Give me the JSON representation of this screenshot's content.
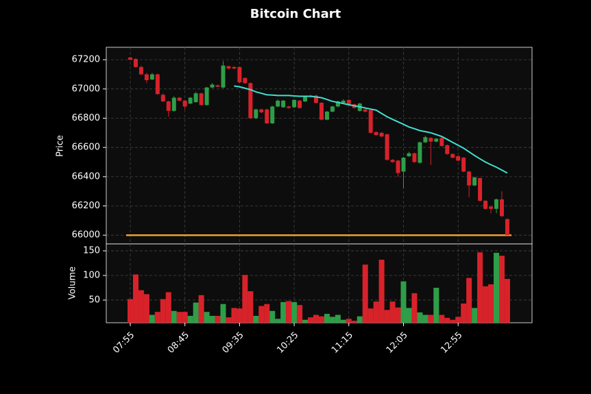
{
  "chart_data": {
    "type": "candlestick",
    "title": "Bitcoin Chart",
    "ylabel": "Price",
    "volume_ylabel": "Volume",
    "categories": [
      "07:55",
      null,
      null,
      null,
      null,
      null,
      null,
      null,
      null,
      null,
      "08:45",
      null,
      null,
      null,
      null,
      null,
      null,
      null,
      null,
      null,
      "09:35",
      null,
      null,
      null,
      null,
      null,
      null,
      null,
      null,
      null,
      "10:25",
      null,
      null,
      null,
      null,
      null,
      null,
      null,
      null,
      null,
      "11:15",
      null,
      null,
      null,
      null,
      null,
      null,
      null,
      null,
      null,
      "12:05",
      null,
      null,
      null,
      null,
      null,
      null,
      null,
      null,
      null,
      "12:55",
      null,
      null,
      null,
      null,
      null,
      null,
      null,
      null,
      null
    ],
    "open": [
      67215,
      67205,
      67150,
      67100,
      67065,
      67100,
      66960,
      66915,
      66850,
      66940,
      66920,
      66900,
      66910,
      66970,
      66890,
      67010,
      67025,
      67010,
      67155,
      67150,
      67150,
      67075,
      67040,
      66800,
      66860,
      66860,
      66765,
      66880,
      66875,
      66880,
      66875,
      66920,
      66915,
      66955,
      66955,
      66905,
      66790,
      66845,
      66880,
      66905,
      66925,
      66895,
      66850,
      66860,
      66855,
      66705,
      66700,
      66690,
      66515,
      66510,
      66435,
      66540,
      66560,
      66495,
      66635,
      66665,
      66640,
      66665,
      66615,
      66555,
      66540,
      66530,
      66435,
      66340,
      66390,
      66235,
      66195,
      66180,
      66245,
      66110
    ],
    "high": [
      67220,
      67210,
      67160,
      67110,
      67110,
      67105,
      66970,
      66920,
      66950,
      66945,
      66925,
      66945,
      66980,
      66975,
      67015,
      67040,
      67030,
      67190,
      67160,
      67155,
      67155,
      67080,
      67045,
      66865,
      66865,
      66865,
      66885,
      66930,
      66925,
      66885,
      66930,
      66925,
      66955,
      66960,
      66960,
      66910,
      66850,
      66885,
      66920,
      66930,
      66930,
      66900,
      66905,
      66865,
      66860,
      66710,
      66705,
      66695,
      66520,
      66515,
      66535,
      66570,
      66565,
      66640,
      66680,
      66670,
      66665,
      66670,
      66620,
      66560,
      66545,
      66535,
      66440,
      66400,
      66395,
      66240,
      66200,
      66250,
      66300,
      66115
    ],
    "low": [
      67195,
      67145,
      67095,
      67040,
      67060,
      66960,
      66910,
      66810,
      66845,
      66915,
      66860,
      66895,
      66905,
      66885,
      66885,
      67005,
      67010,
      67005,
      67135,
      67135,
      67040,
      67035,
      66795,
      66795,
      66835,
      66760,
      66760,
      66875,
      66870,
      66865,
      66870,
      66865,
      66910,
      66940,
      66900,
      66785,
      66785,
      66840,
      66875,
      66900,
      66890,
      66865,
      66845,
      66840,
      66695,
      66680,
      66670,
      66510,
      66495,
      66400,
      66320,
      66535,
      66495,
      66490,
      66630,
      66480,
      66635,
      66605,
      66550,
      66525,
      66505,
      66430,
      66260,
      66335,
      66230,
      66175,
      66150,
      66150,
      66125,
      66000
    ],
    "close": [
      67200,
      67150,
      67100,
      67060,
      67100,
      66965,
      66915,
      66850,
      66940,
      66920,
      66880,
      66940,
      66970,
      66890,
      67010,
      67030,
      67015,
      67160,
      67140,
      67140,
      67045,
      67040,
      66800,
      66860,
      66840,
      66765,
      66880,
      66920,
      66920,
      66870,
      66925,
      66870,
      66950,
      66945,
      66905,
      66790,
      66845,
      66880,
      66915,
      66920,
      66895,
      66870,
      66900,
      66845,
      66700,
      66685,
      66675,
      66515,
      66500,
      66425,
      66530,
      66560,
      66500,
      66635,
      66670,
      66640,
      66660,
      66610,
      66555,
      66530,
      66510,
      66435,
      66340,
      66395,
      66235,
      66180,
      66180,
      66245,
      66130,
      66000
    ],
    "volume": [
      52,
      102,
      70,
      62,
      20,
      26,
      52,
      66,
      28,
      26,
      26,
      18,
      45,
      60,
      26,
      18,
      18,
      42,
      15,
      34,
      33,
      101,
      68,
      18,
      38,
      42,
      28,
      12,
      46,
      48,
      46,
      40,
      10,
      15,
      20,
      17,
      22,
      16,
      20,
      10,
      12,
      8,
      17,
      122,
      33,
      47,
      132,
      30,
      47,
      35,
      88,
      34,
      64,
      25,
      20,
      20,
      75,
      20,
      14,
      10,
      16,
      43,
      95,
      34,
      147,
      78,
      82,
      146,
      140,
      93
    ],
    "ma": [
      null,
      null,
      null,
      null,
      null,
      null,
      null,
      null,
      null,
      null,
      null,
      null,
      null,
      null,
      null,
      null,
      null,
      null,
      null,
      67020,
      67015,
      67005,
      66995,
      66980,
      66970,
      66960,
      66958,
      66955,
      66955,
      66955,
      66952,
      66950,
      66950,
      66950,
      66945,
      66940,
      66928,
      66915,
      66908,
      66900,
      66892,
      66885,
      66878,
      66870,
      66862,
      66855,
      66832,
      66810,
      66792,
      66775,
      66758,
      66740,
      66728,
      66715,
      66708,
      66700,
      66688,
      66675,
      66655,
      66635,
      66615,
      66595,
      66570,
      66545,
      66522,
      66500,
      66482,
      66465,
      66445,
      66425
    ],
    "ma_color": "#40e0d0",
    "hline": 66000,
    "hline_color": "#f0a030",
    "up_color": "#2e9e48",
    "down_color": "#d8222a",
    "ylim": [
      65940,
      67285
    ],
    "yticks": [
      66000,
      66200,
      66400,
      66600,
      66800,
      67000,
      67200
    ],
    "volume_ylim": [
      4,
      164
    ],
    "volume_yticks": [
      50,
      100,
      150
    ],
    "grid": true
  }
}
